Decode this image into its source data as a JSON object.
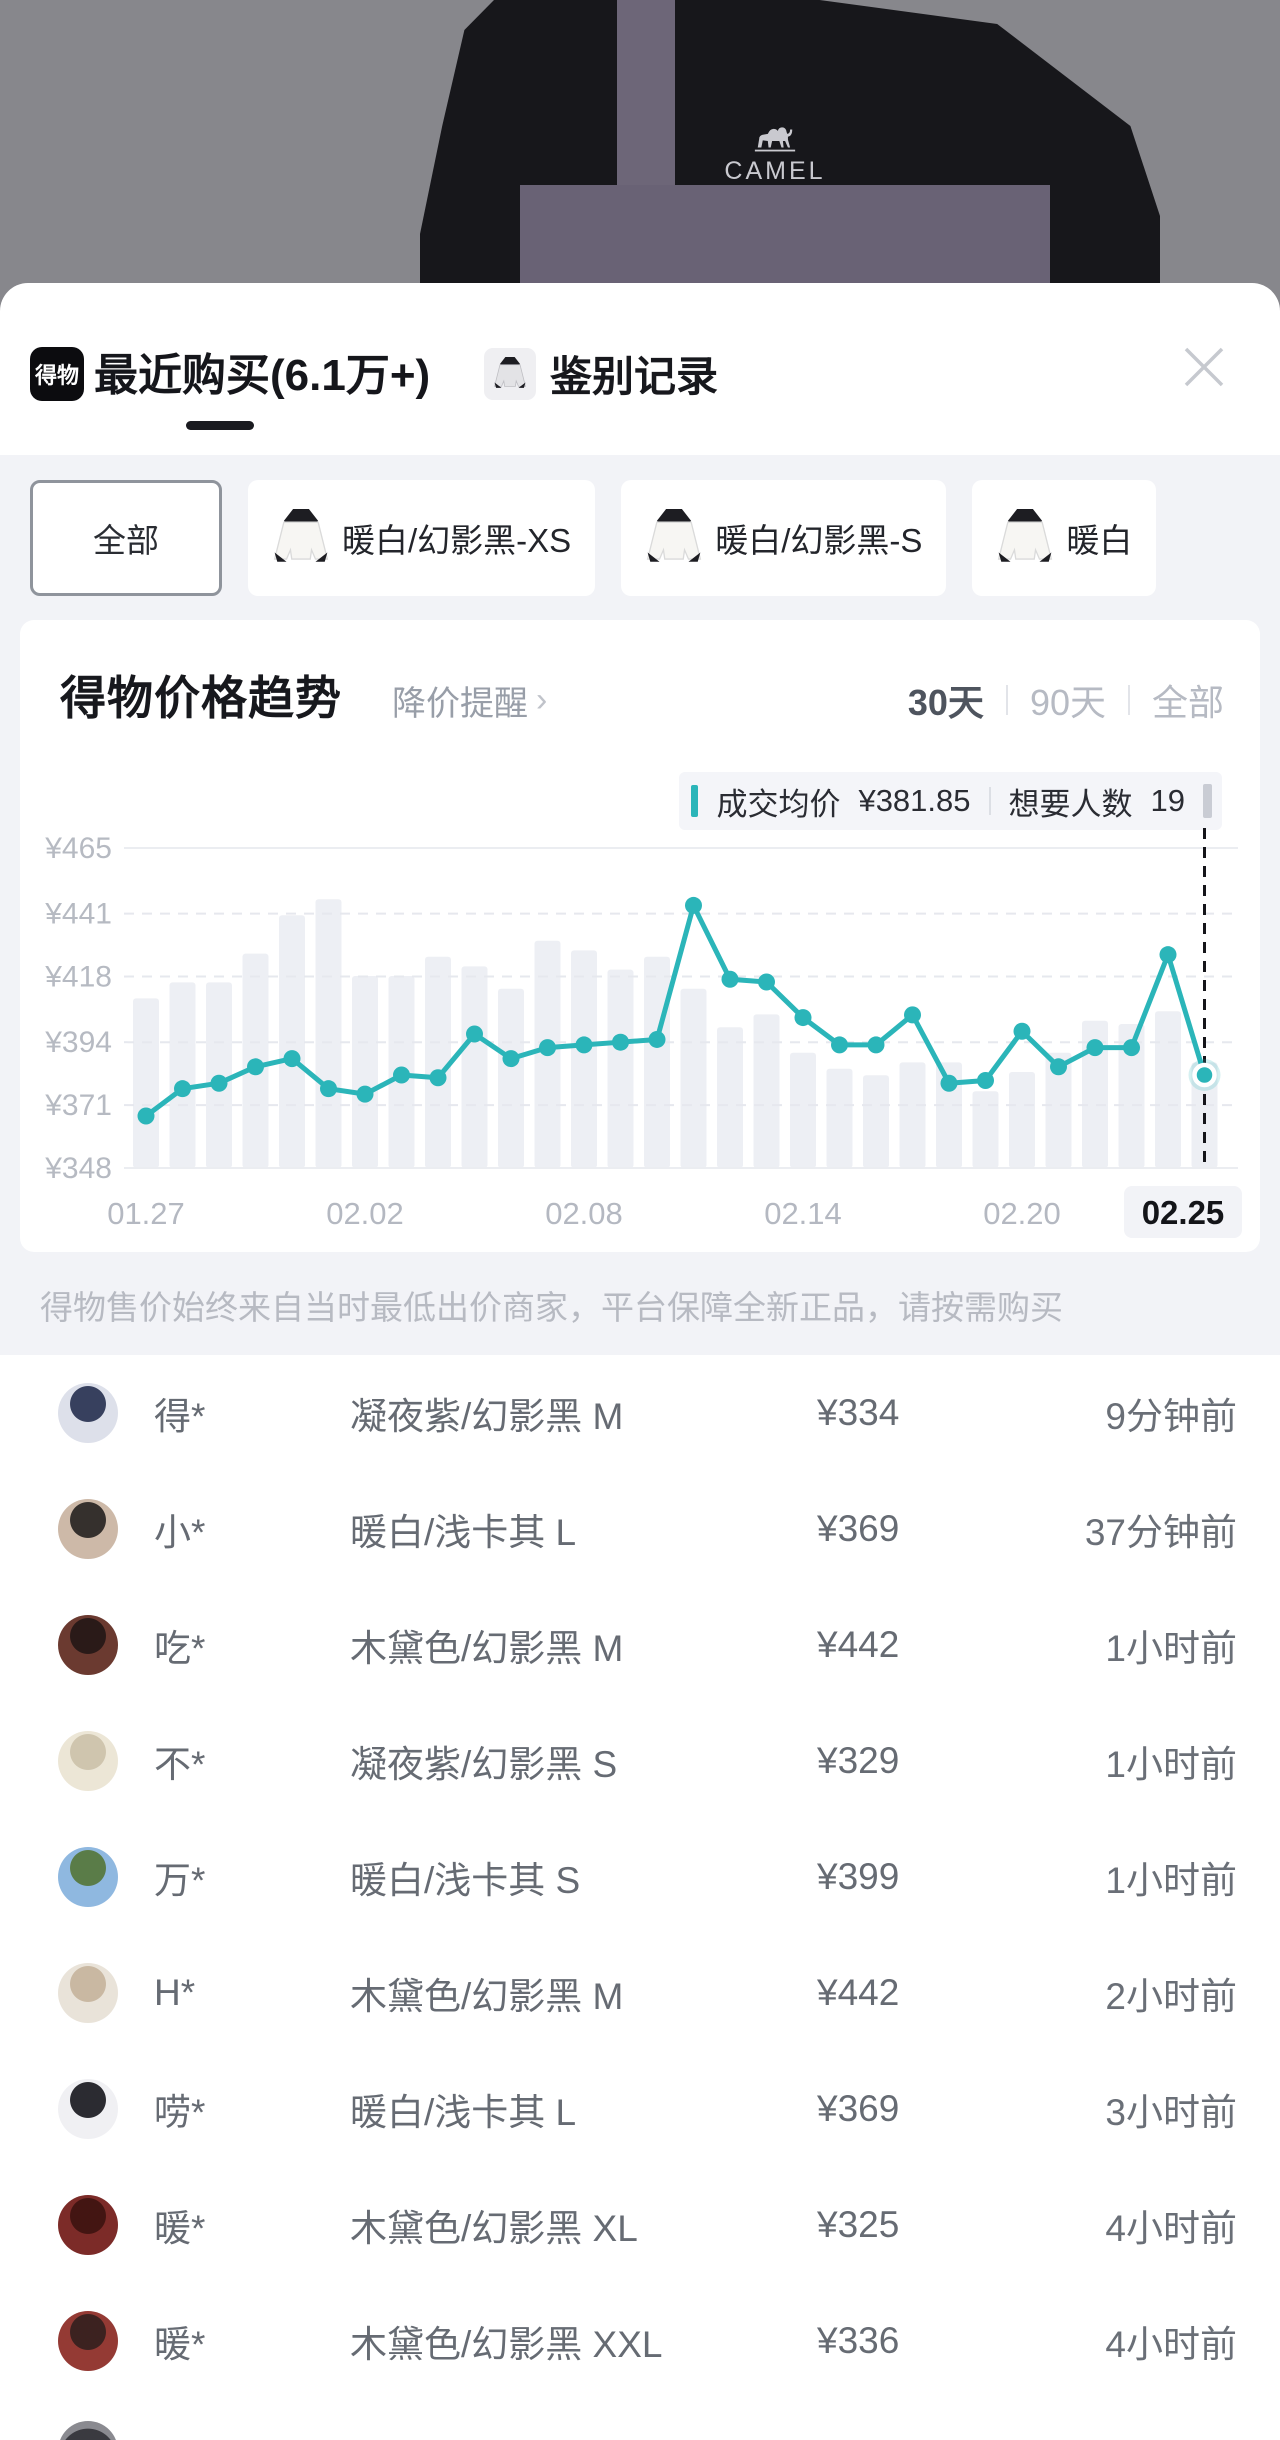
{
  "photo": {
    "brand_text": "CAMEL"
  },
  "modal": {
    "logo_text": "得物",
    "tab_recent": "最近购买(6.1万+)",
    "tab_verify": "鉴别记录"
  },
  "filters": [
    {
      "label": "全部",
      "selected": true,
      "thumb": false
    },
    {
      "label": "暖白/幻影黑-XS",
      "selected": false,
      "thumb": true
    },
    {
      "label": "暖白/幻影黑-S",
      "selected": false,
      "thumb": true
    },
    {
      "label": "暖白",
      "selected": false,
      "thumb": true,
      "clipped": true
    }
  ],
  "price_trend": {
    "title": "得物价格趋势",
    "reminder_label": "降价提醒",
    "periods": [
      {
        "label": "30天",
        "active": true
      },
      {
        "label": "90天",
        "active": false
      },
      {
        "label": "全部",
        "active": false
      }
    ],
    "tooltip": {
      "avg_label": "成交均价",
      "avg_value": "¥381.85",
      "want_label": "想要人数",
      "want_value": "19"
    },
    "chart_data": {
      "type": "line",
      "title": "得物价格趋势 30天",
      "currency": "¥",
      "ylim": [
        348,
        465
      ],
      "y_ticks": [
        465,
        441,
        418,
        394,
        371,
        348
      ],
      "y_tick_labels": [
        "¥465",
        "¥441",
        "¥418",
        "¥394",
        "¥371",
        "¥348"
      ],
      "x_tick_labels": [
        {
          "label": "01.27",
          "index": 0,
          "highlighted": false
        },
        {
          "label": "02.02",
          "index": 6,
          "highlighted": false
        },
        {
          "label": "02.08",
          "index": 12,
          "highlighted": false
        },
        {
          "label": "02.14",
          "index": 18,
          "highlighted": false
        },
        {
          "label": "02.20",
          "index": 24,
          "highlighted": false
        },
        {
          "label": "02.25",
          "index": 29,
          "highlighted": true
        }
      ],
      "series": [
        {
          "name": "成交均价",
          "type": "line",
          "color": "#2bb5b9",
          "values": [
            367,
            377,
            379,
            385,
            388,
            377,
            375,
            382,
            381,
            397,
            388,
            392,
            393,
            394,
            395,
            444,
            417,
            416,
            403,
            393,
            393,
            404,
            379,
            380,
            398,
            385,
            392,
            392,
            426,
            382
          ]
        },
        {
          "name": "成交量(背景柱)",
          "type": "bar",
          "color": "#edeff4",
          "values_fraction": [
            0.53,
            0.58,
            0.58,
            0.67,
            0.79,
            0.84,
            0.6,
            0.6,
            0.66,
            0.63,
            0.56,
            0.71,
            0.68,
            0.62,
            0.66,
            0.56,
            0.44,
            0.48,
            0.36,
            0.31,
            0.29,
            0.33,
            0.33,
            0.24,
            0.3,
            0.36,
            0.46,
            0.45,
            0.49,
            0.33
          ]
        }
      ],
      "selected_point": {
        "index": 29,
        "date": "02.25",
        "avg_price": "¥381.85",
        "want_count": 19
      },
      "legend_position": "top-right-tooltip",
      "grid": "horizontal-dashed"
    }
  },
  "notice": "得物售价始终来自当时最低出价商家，平台保障全新正品，请按需购买",
  "purchases": [
    {
      "user": "得*",
      "variant": "凝夜紫/幻影黑 M",
      "price": "¥334",
      "time": "9分钟前",
      "avatar_colors": [
        "#dde0ea",
        "#37405e"
      ]
    },
    {
      "user": "小*",
      "variant": "暖白/浅卡其 L",
      "price": "¥369",
      "time": "37分钟前",
      "avatar_colors": [
        "#cdb9a8",
        "#35302d"
      ]
    },
    {
      "user": "吃*",
      "variant": "木黛色/幻影黑 M",
      "price": "¥442",
      "time": "1小时前",
      "avatar_colors": [
        "#6b3a30",
        "#2a1a18"
      ]
    },
    {
      "user": "不*",
      "variant": "凝夜紫/幻影黑 S",
      "price": "¥329",
      "time": "1小时前",
      "avatar_colors": [
        "#ece6d6",
        "#cfc5ae"
      ]
    },
    {
      "user": "万*",
      "variant": "暖白/浅卡其 S",
      "price": "¥399",
      "time": "1小时前",
      "avatar_colors": [
        "#8fb8e0",
        "#5a7c48"
      ]
    },
    {
      "user": "H*",
      "variant": "木黛色/幻影黑 M",
      "price": "¥442",
      "time": "2小时前",
      "avatar_colors": [
        "#e9e3d9",
        "#c9b8a2"
      ]
    },
    {
      "user": "唠*",
      "variant": "暖白/浅卡其 L",
      "price": "¥369",
      "time": "3小时前",
      "avatar_colors": [
        "#f0f0f3",
        "#2b2b31"
      ]
    },
    {
      "user": "暖*",
      "variant": "木黛色/幻影黑 XL",
      "price": "¥325",
      "time": "4小时前",
      "avatar_colors": [
        "#7c2b28",
        "#431512"
      ]
    },
    {
      "user": "暖*",
      "variant": "木黛色/幻影黑 XXL",
      "price": "¥336",
      "time": "4小时前",
      "avatar_colors": [
        "#943a34",
        "#3c2220"
      ]
    }
  ],
  "colors": {
    "accent_teal": "#2bb5b9",
    "bar_fill": "#edeff4",
    "page_gray": "#f2f3f7",
    "axis_text": "#b6bac2",
    "list_text": "#666b73",
    "dashed_marker": "#15151a"
  }
}
